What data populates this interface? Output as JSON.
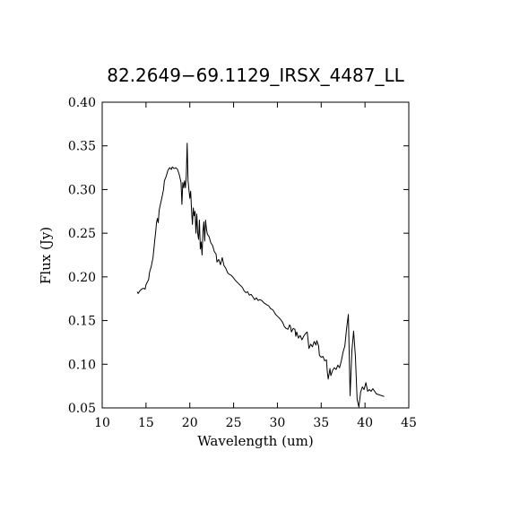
{
  "chart_data": {
    "type": "line",
    "title": "82.2649−69.1129_IRSX_4487_LL",
    "xlabel": "Wavelength (um)",
    "ylabel": "Flux (Jy)",
    "xlim": [
      10,
      45
    ],
    "ylim": [
      0.05,
      0.4
    ],
    "grid": false,
    "x_ticks": [
      "10",
      "15",
      "20",
      "25",
      "30",
      "35",
      "40",
      "45"
    ],
    "y_ticks": [
      "0.05",
      "0.10",
      "0.15",
      "0.20",
      "0.25",
      "0.30",
      "0.35",
      "0.40"
    ],
    "series": [
      {
        "color": "#000000",
        "points": [
          [
            14.0,
            0.183
          ],
          [
            14.1,
            0.181
          ],
          [
            14.3,
            0.184
          ],
          [
            14.5,
            0.186
          ],
          [
            14.7,
            0.187
          ],
          [
            14.9,
            0.186
          ],
          [
            15.0,
            0.191
          ],
          [
            15.2,
            0.195
          ],
          [
            15.3,
            0.197
          ],
          [
            15.4,
            0.205
          ],
          [
            15.6,
            0.212
          ],
          [
            15.8,
            0.222
          ],
          [
            15.9,
            0.232
          ],
          [
            16.0,
            0.242
          ],
          [
            16.1,
            0.251
          ],
          [
            16.2,
            0.262
          ],
          [
            16.3,
            0.267
          ],
          [
            16.4,
            0.262
          ],
          [
            16.5,
            0.276
          ],
          [
            16.6,
            0.281
          ],
          [
            16.8,
            0.29
          ],
          [
            17.0,
            0.3
          ],
          [
            17.1,
            0.31
          ],
          [
            17.3,
            0.315
          ],
          [
            17.5,
            0.322
          ],
          [
            17.7,
            0.325
          ],
          [
            17.9,
            0.323
          ],
          [
            18.0,
            0.326
          ],
          [
            18.2,
            0.324
          ],
          [
            18.4,
            0.325
          ],
          [
            18.6,
            0.323
          ],
          [
            18.8,
            0.317
          ],
          [
            19.0,
            0.308
          ],
          [
            19.1,
            0.283
          ],
          [
            19.2,
            0.308
          ],
          [
            19.3,
            0.302
          ],
          [
            19.4,
            0.31
          ],
          [
            19.5,
            0.302
          ],
          [
            19.6,
            0.316
          ],
          [
            19.7,
            0.353
          ],
          [
            19.8,
            0.31
          ],
          [
            19.9,
            0.3
          ],
          [
            20.0,
            0.29
          ],
          [
            20.1,
            0.298
          ],
          [
            20.2,
            0.276
          ],
          [
            20.3,
            0.26
          ],
          [
            20.4,
            0.279
          ],
          [
            20.5,
            0.27
          ],
          [
            20.6,
            0.275
          ],
          [
            20.7,
            0.25
          ],
          [
            20.8,
            0.272
          ],
          [
            20.9,
            0.25
          ],
          [
            21.0,
            0.243
          ],
          [
            21.1,
            0.265
          ],
          [
            21.2,
            0.232
          ],
          [
            21.3,
            0.24
          ],
          [
            21.4,
            0.225
          ],
          [
            21.5,
            0.252
          ],
          [
            21.6,
            0.263
          ],
          [
            21.7,
            0.241
          ],
          [
            21.8,
            0.265
          ],
          [
            21.9,
            0.255
          ],
          [
            22.0,
            0.249
          ],
          [
            22.2,
            0.246
          ],
          [
            22.4,
            0.239
          ],
          [
            22.6,
            0.236
          ],
          [
            22.8,
            0.229
          ],
          [
            23.0,
            0.226
          ],
          [
            23.1,
            0.217
          ],
          [
            23.3,
            0.22
          ],
          [
            23.5,
            0.214
          ],
          [
            23.7,
            0.222
          ],
          [
            23.9,
            0.213
          ],
          [
            24.1,
            0.21
          ],
          [
            24.3,
            0.205
          ],
          [
            24.5,
            0.203
          ],
          [
            24.7,
            0.202
          ],
          [
            24.9,
            0.2
          ],
          [
            25.2,
            0.196
          ],
          [
            25.5,
            0.193
          ],
          [
            25.8,
            0.19
          ],
          [
            26.0,
            0.188
          ],
          [
            26.2,
            0.184
          ],
          [
            26.4,
            0.182
          ],
          [
            26.6,
            0.183
          ],
          [
            26.8,
            0.179
          ],
          [
            27.0,
            0.18
          ],
          [
            27.2,
            0.177
          ],
          [
            27.4,
            0.174
          ],
          [
            27.6,
            0.176
          ],
          [
            27.8,
            0.173
          ],
          [
            28.0,
            0.174
          ],
          [
            28.2,
            0.173
          ],
          [
            28.5,
            0.17
          ],
          [
            28.8,
            0.168
          ],
          [
            29.0,
            0.167
          ],
          [
            29.2,
            0.164
          ],
          [
            29.5,
            0.162
          ],
          [
            29.8,
            0.157
          ],
          [
            30.0,
            0.155
          ],
          [
            30.3,
            0.152
          ],
          [
            30.6,
            0.148
          ],
          [
            30.8,
            0.143
          ],
          [
            31.0,
            0.141
          ],
          [
            31.2,
            0.14
          ],
          [
            31.4,
            0.145
          ],
          [
            31.5,
            0.143
          ],
          [
            31.6,
            0.137
          ],
          [
            31.8,
            0.141
          ],
          [
            32.0,
            0.14
          ],
          [
            32.1,
            0.132
          ],
          [
            32.2,
            0.137
          ],
          [
            32.4,
            0.13
          ],
          [
            32.6,
            0.133
          ],
          [
            32.8,
            0.128
          ],
          [
            33.0,
            0.132
          ],
          [
            33.2,
            0.135
          ],
          [
            33.4,
            0.137
          ],
          [
            33.5,
            0.128
          ],
          [
            33.6,
            0.118
          ],
          [
            33.8,
            0.123
          ],
          [
            34.0,
            0.12
          ],
          [
            34.2,
            0.126
          ],
          [
            34.4,
            0.122
          ],
          [
            34.5,
            0.127
          ],
          [
            34.7,
            0.121
          ],
          [
            34.8,
            0.11
          ],
          [
            35.0,
            0.108
          ],
          [
            35.2,
            0.109
          ],
          [
            35.4,
            0.104
          ],
          [
            35.6,
            0.105
          ],
          [
            35.7,
            0.091
          ],
          [
            35.8,
            0.083
          ],
          [
            36.0,
            0.095
          ],
          [
            36.1,
            0.087
          ],
          [
            36.3,
            0.093
          ],
          [
            36.5,
            0.096
          ],
          [
            36.7,
            0.094
          ],
          [
            36.9,
            0.099
          ],
          [
            37.1,
            0.096
          ],
          [
            37.3,
            0.104
          ],
          [
            37.5,
            0.114
          ],
          [
            37.7,
            0.121
          ],
          [
            37.9,
            0.141
          ],
          [
            38.1,
            0.157
          ],
          [
            38.3,
            0.064
          ],
          [
            38.5,
            0.115
          ],
          [
            38.7,
            0.138
          ],
          [
            38.9,
            0.11
          ],
          [
            39.1,
            0.06
          ],
          [
            39.3,
            0.051
          ],
          [
            39.5,
            0.068
          ],
          [
            39.7,
            0.074
          ],
          [
            39.9,
            0.071
          ],
          [
            40.1,
            0.079
          ],
          [
            40.3,
            0.069
          ],
          [
            40.5,
            0.071
          ],
          [
            40.7,
            0.069
          ],
          [
            40.9,
            0.072
          ],
          [
            41.1,
            0.069
          ],
          [
            41.3,
            0.066
          ],
          [
            41.6,
            0.065
          ],
          [
            42.2,
            0.063
          ]
        ]
      }
    ]
  }
}
